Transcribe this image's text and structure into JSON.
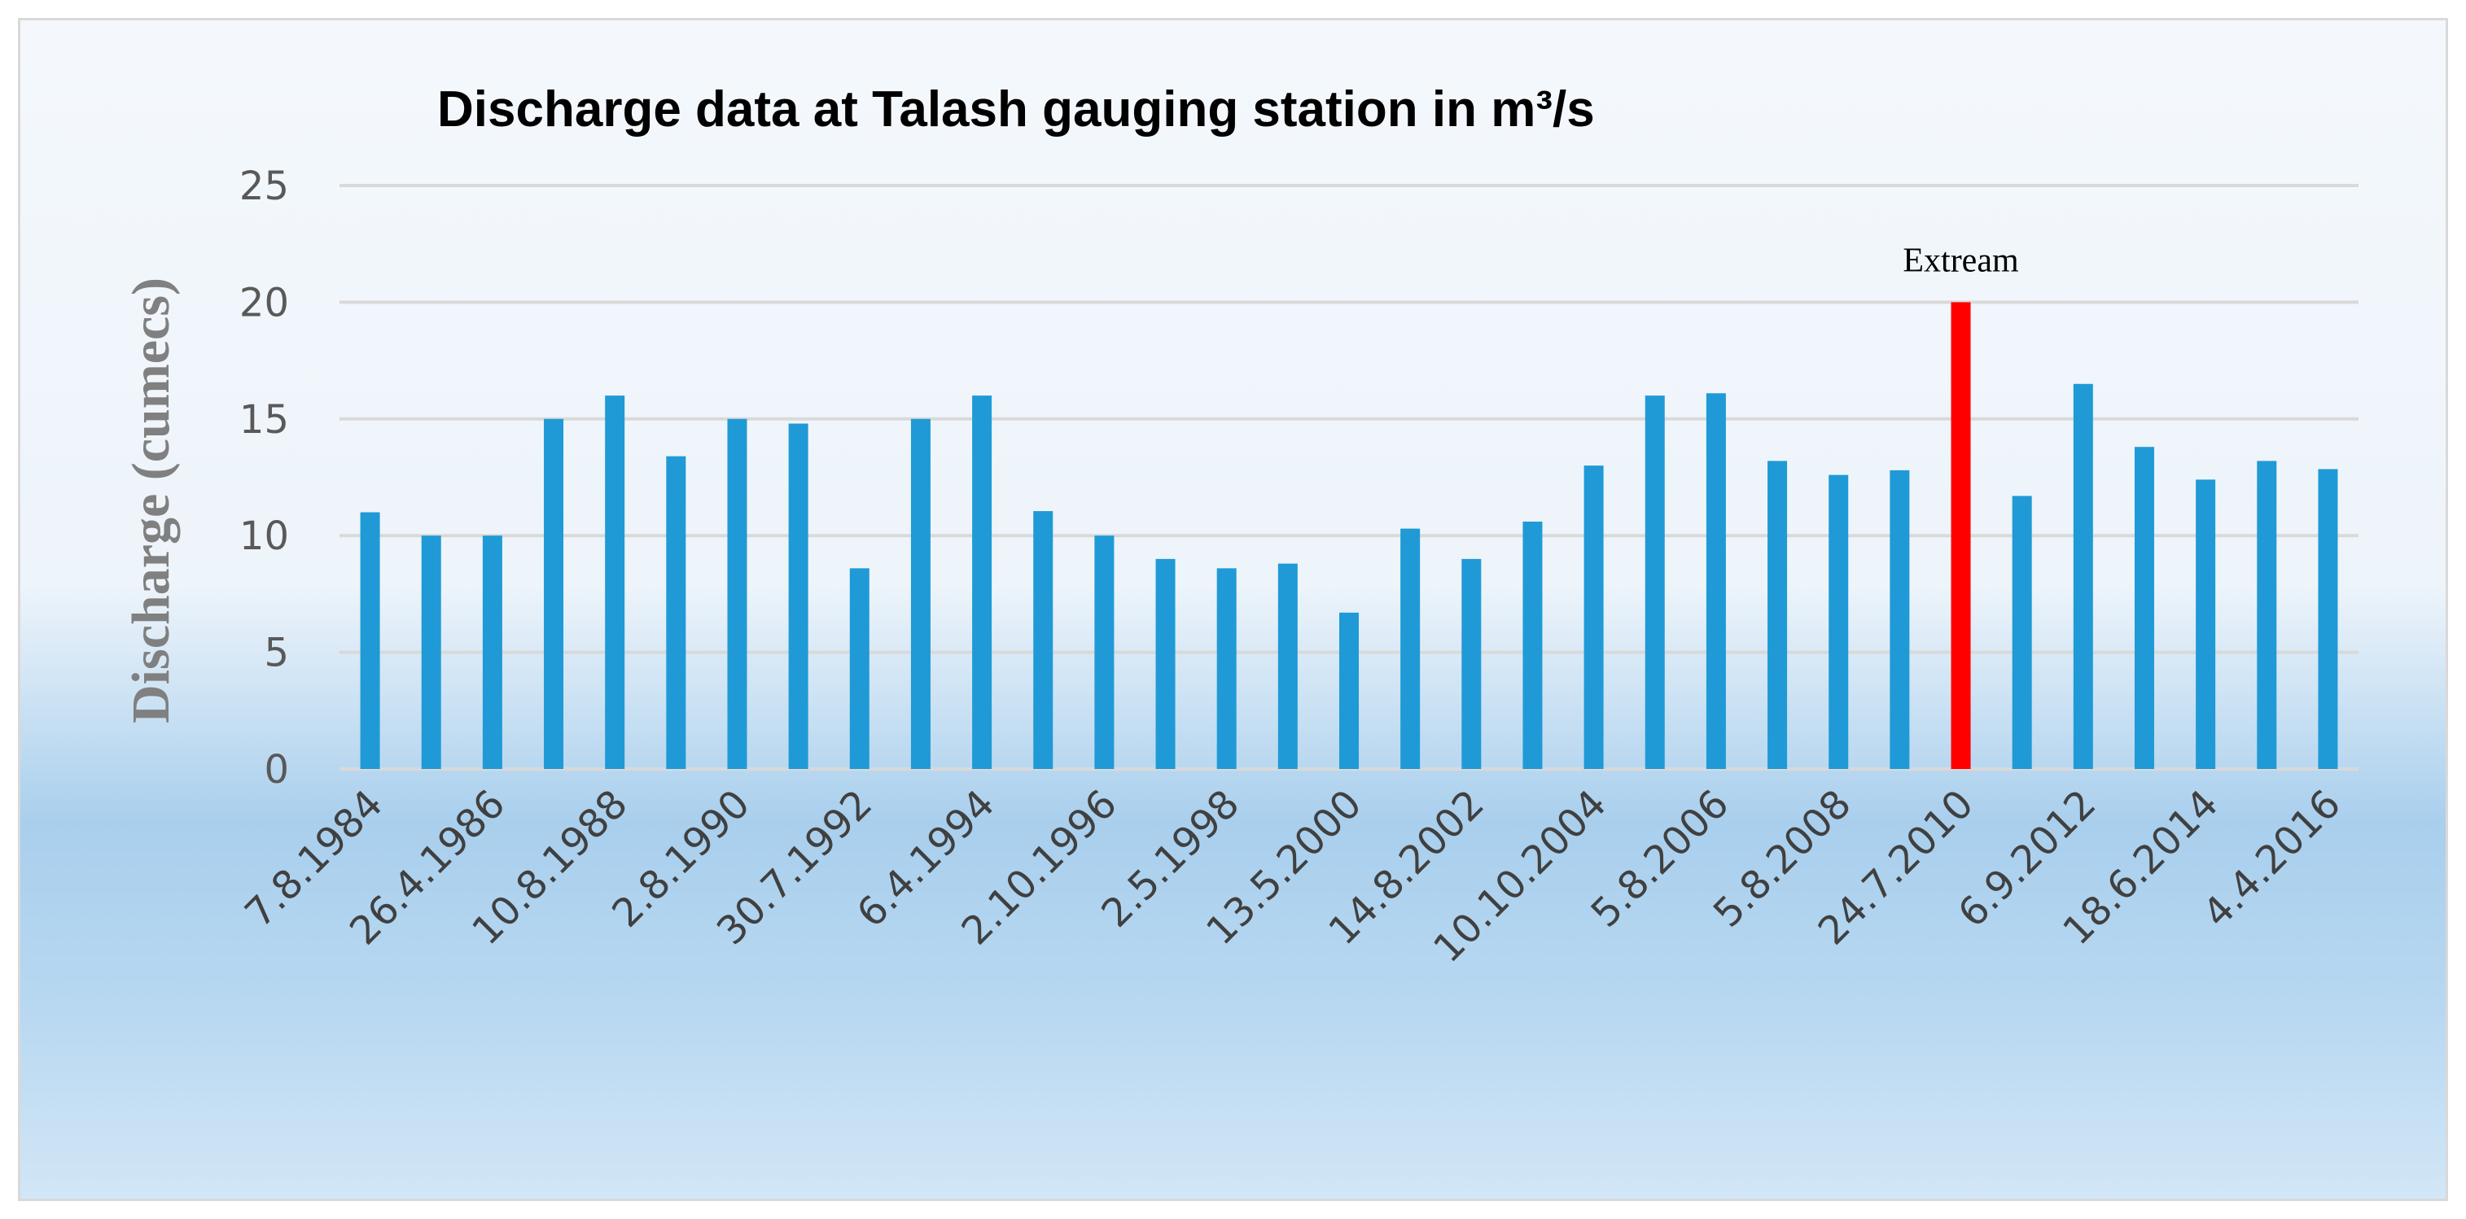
{
  "chart_data": {
    "type": "bar",
    "title": "Discharge data at Talash gauging station in m³/s",
    "ylabel": "Discharge (cumecs)",
    "xlabel": "",
    "ylim": [
      0,
      25
    ],
    "yticks": [
      0,
      5,
      10,
      15,
      20,
      25
    ],
    "grid": true,
    "categories": [
      "7.8.1984",
      "",
      "26.4.1986",
      "",
      "10.8.1988",
      "",
      "2.8.1990",
      "",
      "30.7.1992",
      "",
      "6.4.1994",
      "",
      "2.10.1996",
      "",
      "2.5.1998",
      "",
      "13.5.2000",
      "",
      "14.8.2002",
      "",
      "10.10.2004",
      "",
      "5.8.2006",
      "",
      "5.8.2008",
      "",
      "24.7.2010",
      "",
      "6.9.2012",
      "",
      "18.6.2014",
      "",
      "4.4.2016"
    ],
    "values": [
      11,
      10,
      10,
      15,
      16,
      13.4,
      15,
      14.8,
      8.6,
      15,
      16,
      11.05,
      10,
      9,
      8.6,
      8.8,
      6.7,
      10.3,
      9,
      10.6,
      13,
      16,
      16.1,
      13.2,
      12.6,
      12.8,
      20,
      11.7,
      16.5,
      13.8,
      12.4,
      13.2,
      12.85
    ],
    "colors": {
      "bar": "#1f9ad6",
      "highlight": "#ff0000"
    },
    "highlight_index": 26,
    "annotations": [
      {
        "index": 26,
        "text": "Extream"
      }
    ]
  }
}
